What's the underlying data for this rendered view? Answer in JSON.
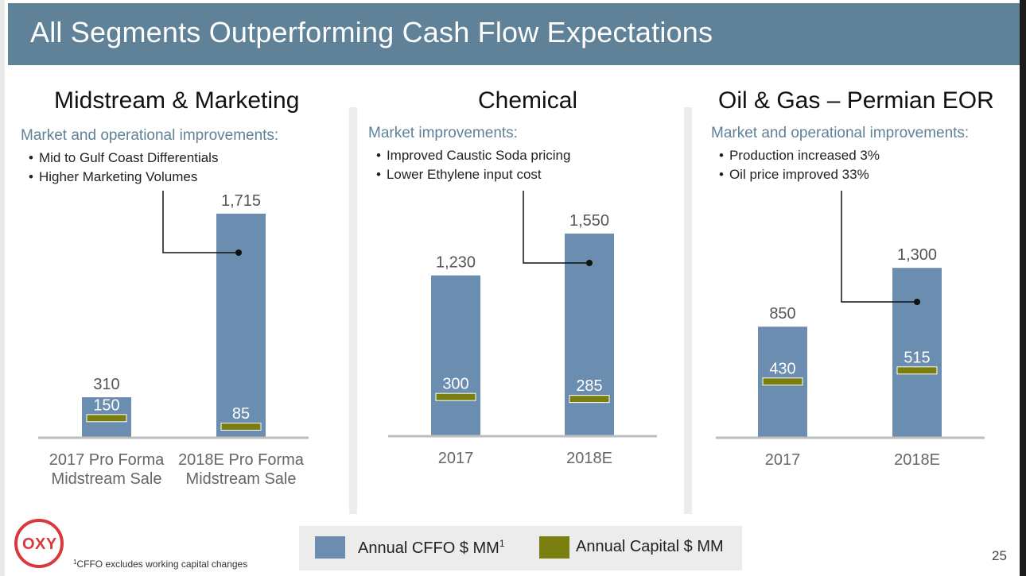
{
  "title": "All Segments Outperforming Cash Flow Expectations",
  "colors": {
    "header": "#5f8298",
    "cffo": "#6a8db0",
    "capital": "#7b7f0f",
    "subtitle": "#5f8298",
    "separator": "#ececec"
  },
  "segments": [
    {
      "title": "Midstream & Marketing",
      "subtitle": "Market and operational improvements:",
      "bullets": [
        "Mid to Gulf Coast Differentials",
        "Higher Marketing Volumes"
      ]
    },
    {
      "title": "Chemical",
      "subtitle": "Market improvements:",
      "bullets": [
        "Improved Caustic Soda pricing",
        "Lower Ethylene input cost"
      ]
    },
    {
      "title": "Oil & Gas – Permian EOR",
      "subtitle": "Market and operational improvements:",
      "bullets": [
        "Production increased 3%",
        "Oil price improved 33%"
      ]
    }
  ],
  "legend": {
    "cffo_label": "Annual CFFO $ MM",
    "cffo_sup": "1",
    "capital_label": "Annual Capital $ MM"
  },
  "footnote": {
    "sup": "1",
    "text": "CFFO excludes working capital changes"
  },
  "page_number": "25",
  "logo": {
    "text": "OXY"
  },
  "chart_data": [
    {
      "type": "bar",
      "title": "Midstream & Marketing",
      "categories": [
        "2017 Pro Forma Midstream Sale",
        "2018E Pro Forma Midstream Sale"
      ],
      "category_lines": [
        [
          "2017 Pro Forma",
          "Midstream Sale"
        ],
        [
          "2018E Pro Forma",
          "Midstream Sale"
        ]
      ],
      "series": [
        {
          "name": "Annual CFFO $ MM",
          "values": [
            310,
            1715
          ],
          "labels": [
            "310",
            "1,715"
          ]
        },
        {
          "name": "Annual Capital $ MM",
          "values": [
            150,
            85
          ],
          "labels": [
            "150",
            "85"
          ]
        }
      ]
    },
    {
      "type": "bar",
      "title": "Chemical",
      "categories": [
        "2017",
        "2018E"
      ],
      "category_lines": [
        [
          "2017"
        ],
        [
          "2018E"
        ]
      ],
      "series": [
        {
          "name": "Annual CFFO $ MM",
          "values": [
            1230,
            1550
          ],
          "labels": [
            "1,230",
            "1,550"
          ]
        },
        {
          "name": "Annual Capital $ MM",
          "values": [
            300,
            285
          ],
          "labels": [
            "300",
            "285"
          ]
        }
      ]
    },
    {
      "type": "bar",
      "title": "Oil & Gas – Permian EOR",
      "categories": [
        "2017",
        "2018E"
      ],
      "category_lines": [
        [
          "2017"
        ],
        [
          "2018E"
        ]
      ],
      "series": [
        {
          "name": "Annual CFFO $ MM",
          "values": [
            850,
            1300
          ],
          "labels": [
            "850",
            "1,300"
          ]
        },
        {
          "name": "Annual Capital $ MM",
          "values": [
            430,
            515
          ],
          "labels": [
            "430",
            "515"
          ]
        }
      ]
    }
  ]
}
